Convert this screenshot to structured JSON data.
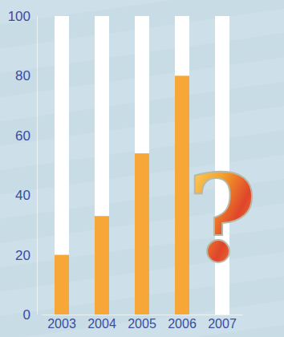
{
  "chart_data": {
    "type": "bar",
    "categories": [
      "2003",
      "2004",
      "2005",
      "2006",
      "2007"
    ],
    "values": [
      20,
      33,
      54,
      80,
      null
    ],
    "color": "#f7a738",
    "ylim": [
      0,
      100
    ],
    "yticks": [
      0,
      20,
      40,
      60,
      80,
      100
    ],
    "grid": false,
    "annotation": "?"
  }
}
